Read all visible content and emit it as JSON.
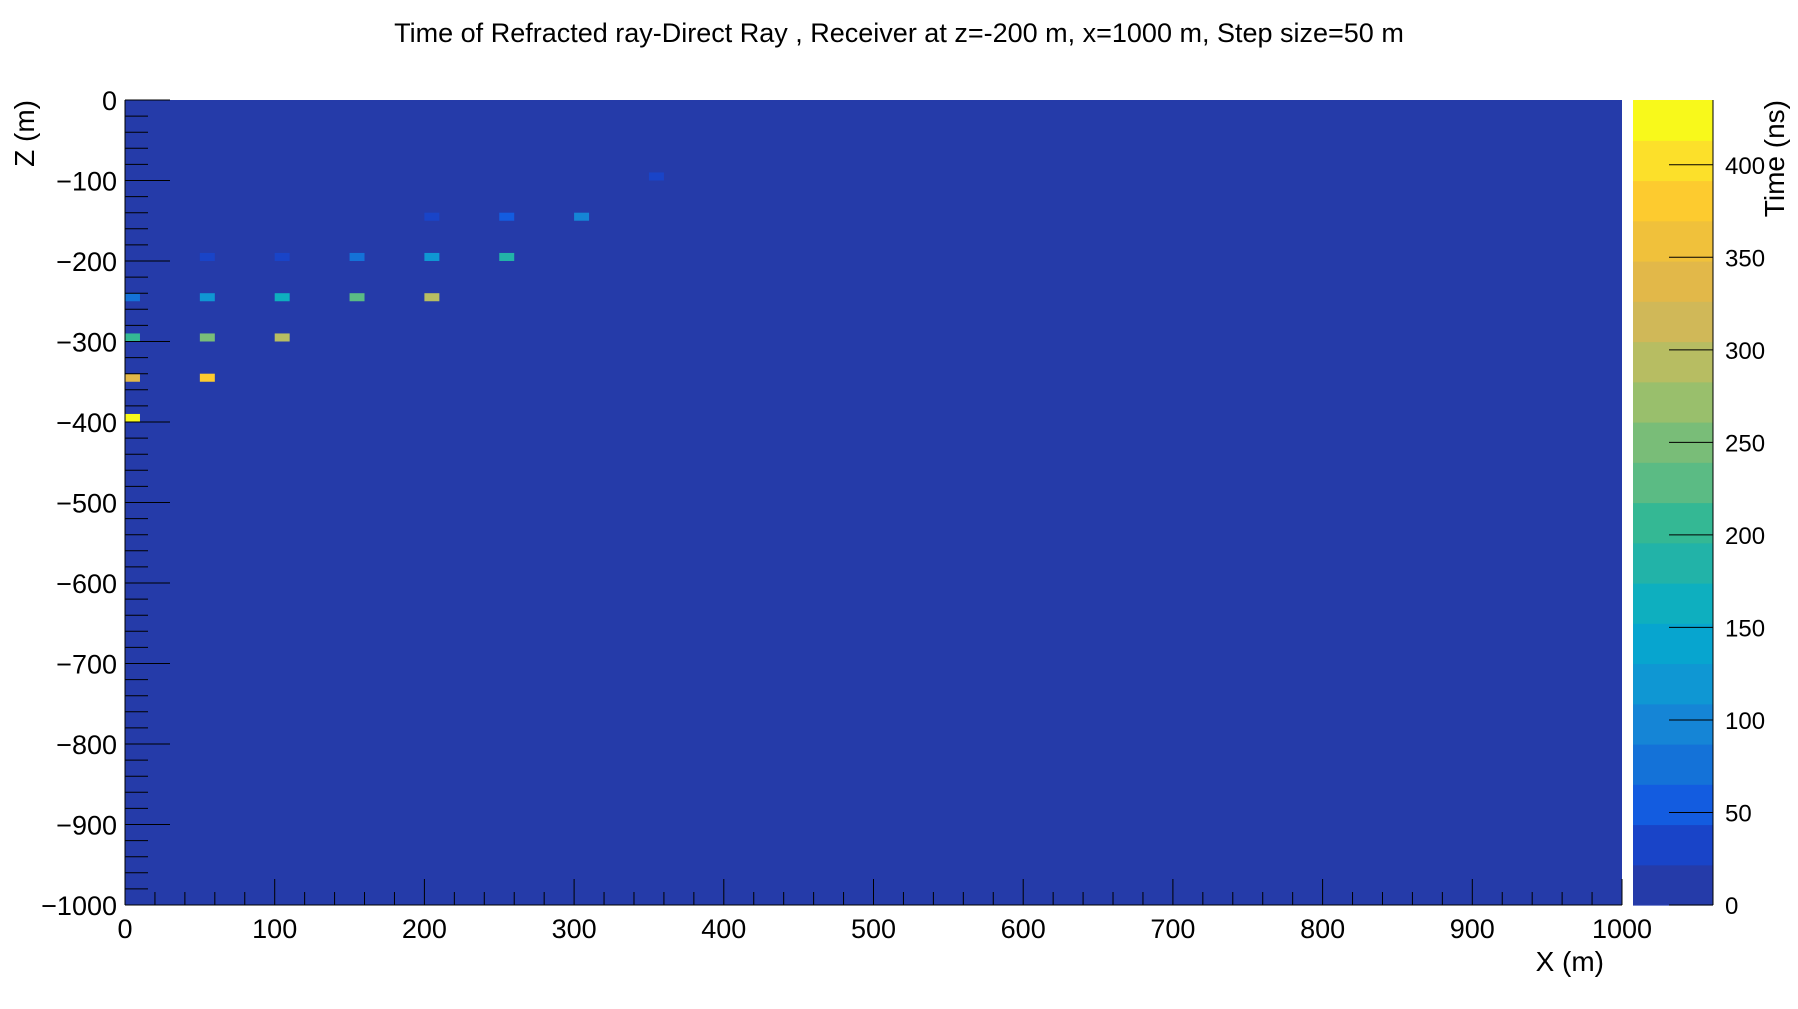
{
  "chart_data": {
    "type": "heatmap",
    "title": "Time of Refracted ray-Direct Ray , Receiver at z=-200 m, x=1000 m, Step size=50 m",
    "xlabel": "X (m)",
    "ylabel": "Z (m)",
    "zlabel": "Time (ns)",
    "xlim": [
      0,
      1000
    ],
    "ylim": [
      -1000,
      0
    ],
    "zlim": [
      0,
      435
    ],
    "x_ticks": [
      "0",
      "100",
      "200",
      "300",
      "400",
      "500",
      "600",
      "700",
      "800",
      "900",
      "1000"
    ],
    "y_ticks": [
      "0",
      "−100",
      "−200",
      "−300",
      "−400",
      "−500",
      "−600",
      "−700",
      "−800",
      "−900",
      "−1000"
    ],
    "z_ticks": [
      "0",
      "50",
      "100",
      "150",
      "200",
      "250",
      "300",
      "350",
      "400"
    ],
    "background_value": 0,
    "cells": [
      {
        "x": 355,
        "z": -95,
        "t": 30
      },
      {
        "x": 205,
        "z": -145,
        "t": 35
      },
      {
        "x": 255,
        "z": -145,
        "t": 60
      },
      {
        "x": 305,
        "z": -145,
        "t": 95
      },
      {
        "x": 55,
        "z": -195,
        "t": 30
      },
      {
        "x": 105,
        "z": -195,
        "t": 40
      },
      {
        "x": 155,
        "z": -195,
        "t": 80
      },
      {
        "x": 205,
        "z": -195,
        "t": 130
      },
      {
        "x": 255,
        "z": -195,
        "t": 185
      },
      {
        "x": 5,
        "z": -245,
        "t": 80
      },
      {
        "x": 55,
        "z": -245,
        "t": 115
      },
      {
        "x": 105,
        "z": -245,
        "t": 160
      },
      {
        "x": 155,
        "z": -245,
        "t": 230
      },
      {
        "x": 205,
        "z": -245,
        "t": 290
      },
      {
        "x": 5,
        "z": -295,
        "t": 200
      },
      {
        "x": 55,
        "z": -295,
        "t": 250
      },
      {
        "x": 105,
        "z": -295,
        "t": 300
      },
      {
        "x": 5,
        "z": -345,
        "t": 330
      },
      {
        "x": 55,
        "z": -345,
        "t": 390
      },
      {
        "x": 5,
        "z": -395,
        "t": 430
      }
    ],
    "palette": [
      "#253ba9",
      "#1944c8",
      "#135ce0",
      "#1472d8",
      "#1585d6",
      "#0f97d3",
      "#07a5cf",
      "#0eafbf",
      "#22b3a8",
      "#34b894",
      "#5bbb84",
      "#79bd78",
      "#99bf6c",
      "#b7bd62",
      "#d0b858",
      "#e2b849",
      "#f0c13b",
      "#fdcb2f",
      "#fce02a",
      "#f8f91b"
    ],
    "colors": {
      "background": "#253ba9",
      "axis": "#000000"
    }
  }
}
